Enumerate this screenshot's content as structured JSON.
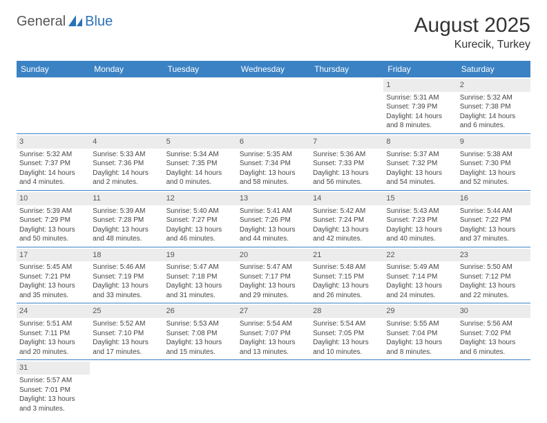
{
  "logo": {
    "general": "General",
    "blue": "Blue"
  },
  "title": "August 2025",
  "location": "Kurecik, Turkey",
  "colors": {
    "headerBar": "#3b82c4",
    "dayNumBg": "#ececec",
    "weekBorder": "#3b82c4",
    "text": "#333333"
  },
  "dayHeaders": [
    "Sunday",
    "Monday",
    "Tuesday",
    "Wednesday",
    "Thursday",
    "Friday",
    "Saturday"
  ],
  "weeks": [
    [
      null,
      null,
      null,
      null,
      null,
      {
        "n": "1",
        "sr": "Sunrise: 5:31 AM",
        "ss": "Sunset: 7:39 PM",
        "dl": "Daylight: 14 hours and 8 minutes."
      },
      {
        "n": "2",
        "sr": "Sunrise: 5:32 AM",
        "ss": "Sunset: 7:38 PM",
        "dl": "Daylight: 14 hours and 6 minutes."
      }
    ],
    [
      {
        "n": "3",
        "sr": "Sunrise: 5:32 AM",
        "ss": "Sunset: 7:37 PM",
        "dl": "Daylight: 14 hours and 4 minutes."
      },
      {
        "n": "4",
        "sr": "Sunrise: 5:33 AM",
        "ss": "Sunset: 7:36 PM",
        "dl": "Daylight: 14 hours and 2 minutes."
      },
      {
        "n": "5",
        "sr": "Sunrise: 5:34 AM",
        "ss": "Sunset: 7:35 PM",
        "dl": "Daylight: 14 hours and 0 minutes."
      },
      {
        "n": "6",
        "sr": "Sunrise: 5:35 AM",
        "ss": "Sunset: 7:34 PM",
        "dl": "Daylight: 13 hours and 58 minutes."
      },
      {
        "n": "7",
        "sr": "Sunrise: 5:36 AM",
        "ss": "Sunset: 7:33 PM",
        "dl": "Daylight: 13 hours and 56 minutes."
      },
      {
        "n": "8",
        "sr": "Sunrise: 5:37 AM",
        "ss": "Sunset: 7:32 PM",
        "dl": "Daylight: 13 hours and 54 minutes."
      },
      {
        "n": "9",
        "sr": "Sunrise: 5:38 AM",
        "ss": "Sunset: 7:30 PM",
        "dl": "Daylight: 13 hours and 52 minutes."
      }
    ],
    [
      {
        "n": "10",
        "sr": "Sunrise: 5:39 AM",
        "ss": "Sunset: 7:29 PM",
        "dl": "Daylight: 13 hours and 50 minutes."
      },
      {
        "n": "11",
        "sr": "Sunrise: 5:39 AM",
        "ss": "Sunset: 7:28 PM",
        "dl": "Daylight: 13 hours and 48 minutes."
      },
      {
        "n": "12",
        "sr": "Sunrise: 5:40 AM",
        "ss": "Sunset: 7:27 PM",
        "dl": "Daylight: 13 hours and 46 minutes."
      },
      {
        "n": "13",
        "sr": "Sunrise: 5:41 AM",
        "ss": "Sunset: 7:26 PM",
        "dl": "Daylight: 13 hours and 44 minutes."
      },
      {
        "n": "14",
        "sr": "Sunrise: 5:42 AM",
        "ss": "Sunset: 7:24 PM",
        "dl": "Daylight: 13 hours and 42 minutes."
      },
      {
        "n": "15",
        "sr": "Sunrise: 5:43 AM",
        "ss": "Sunset: 7:23 PM",
        "dl": "Daylight: 13 hours and 40 minutes."
      },
      {
        "n": "16",
        "sr": "Sunrise: 5:44 AM",
        "ss": "Sunset: 7:22 PM",
        "dl": "Daylight: 13 hours and 37 minutes."
      }
    ],
    [
      {
        "n": "17",
        "sr": "Sunrise: 5:45 AM",
        "ss": "Sunset: 7:21 PM",
        "dl": "Daylight: 13 hours and 35 minutes."
      },
      {
        "n": "18",
        "sr": "Sunrise: 5:46 AM",
        "ss": "Sunset: 7:19 PM",
        "dl": "Daylight: 13 hours and 33 minutes."
      },
      {
        "n": "19",
        "sr": "Sunrise: 5:47 AM",
        "ss": "Sunset: 7:18 PM",
        "dl": "Daylight: 13 hours and 31 minutes."
      },
      {
        "n": "20",
        "sr": "Sunrise: 5:47 AM",
        "ss": "Sunset: 7:17 PM",
        "dl": "Daylight: 13 hours and 29 minutes."
      },
      {
        "n": "21",
        "sr": "Sunrise: 5:48 AM",
        "ss": "Sunset: 7:15 PM",
        "dl": "Daylight: 13 hours and 26 minutes."
      },
      {
        "n": "22",
        "sr": "Sunrise: 5:49 AM",
        "ss": "Sunset: 7:14 PM",
        "dl": "Daylight: 13 hours and 24 minutes."
      },
      {
        "n": "23",
        "sr": "Sunrise: 5:50 AM",
        "ss": "Sunset: 7:12 PM",
        "dl": "Daylight: 13 hours and 22 minutes."
      }
    ],
    [
      {
        "n": "24",
        "sr": "Sunrise: 5:51 AM",
        "ss": "Sunset: 7:11 PM",
        "dl": "Daylight: 13 hours and 20 minutes."
      },
      {
        "n": "25",
        "sr": "Sunrise: 5:52 AM",
        "ss": "Sunset: 7:10 PM",
        "dl": "Daylight: 13 hours and 17 minutes."
      },
      {
        "n": "26",
        "sr": "Sunrise: 5:53 AM",
        "ss": "Sunset: 7:08 PM",
        "dl": "Daylight: 13 hours and 15 minutes."
      },
      {
        "n": "27",
        "sr": "Sunrise: 5:54 AM",
        "ss": "Sunset: 7:07 PM",
        "dl": "Daylight: 13 hours and 13 minutes."
      },
      {
        "n": "28",
        "sr": "Sunrise: 5:54 AM",
        "ss": "Sunset: 7:05 PM",
        "dl": "Daylight: 13 hours and 10 minutes."
      },
      {
        "n": "29",
        "sr": "Sunrise: 5:55 AM",
        "ss": "Sunset: 7:04 PM",
        "dl": "Daylight: 13 hours and 8 minutes."
      },
      {
        "n": "30",
        "sr": "Sunrise: 5:56 AM",
        "ss": "Sunset: 7:02 PM",
        "dl": "Daylight: 13 hours and 6 minutes."
      }
    ],
    [
      {
        "n": "31",
        "sr": "Sunrise: 5:57 AM",
        "ss": "Sunset: 7:01 PM",
        "dl": "Daylight: 13 hours and 3 minutes."
      },
      null,
      null,
      null,
      null,
      null,
      null
    ]
  ]
}
